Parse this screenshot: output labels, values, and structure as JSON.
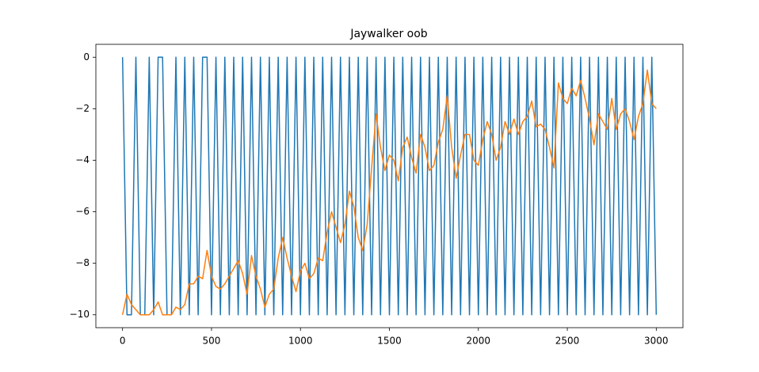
{
  "chart_data": {
    "type": "line",
    "title": "Jaywalker oob",
    "x": [
      0,
      25,
      50,
      75,
      100,
      125,
      150,
      175,
      200,
      225,
      250,
      275,
      300,
      325,
      350,
      375,
      400,
      425,
      450,
      475,
      500,
      525,
      550,
      575,
      600,
      625,
      650,
      675,
      700,
      725,
      750,
      775,
      800,
      825,
      850,
      875,
      900,
      925,
      950,
      975,
      1000,
      1025,
      1050,
      1075,
      1100,
      1125,
      1150,
      1175,
      1200,
      1225,
      1250,
      1275,
      1300,
      1325,
      1350,
      1375,
      1400,
      1425,
      1450,
      1475,
      1500,
      1525,
      1550,
      1575,
      1600,
      1625,
      1650,
      1675,
      1700,
      1725,
      1750,
      1775,
      1800,
      1825,
      1850,
      1875,
      1900,
      1925,
      1950,
      1975,
      2000,
      2025,
      2050,
      2075,
      2100,
      2125,
      2150,
      2175,
      2200,
      2225,
      2250,
      2275,
      2300,
      2325,
      2350,
      2375,
      2400,
      2425,
      2450,
      2475,
      2500,
      2525,
      2550,
      2575,
      2600,
      2625,
      2650,
      2675,
      2700,
      2725,
      2750,
      2775,
      2800,
      2825,
      2850,
      2875,
      2900,
      2925,
      2950,
      2975,
      3000
    ],
    "series": [
      {
        "color": "#1f77b4",
        "values": [
          0,
          -10,
          -10,
          0,
          -10,
          -10,
          0,
          -10,
          0,
          0,
          -10,
          -10,
          0,
          -10,
          0,
          -10,
          0,
          -10,
          0,
          0,
          -10,
          0,
          -10,
          0,
          -10,
          0,
          -10,
          0,
          -10,
          0,
          -10,
          0,
          -10,
          0,
          -10,
          0,
          -10,
          0,
          -10,
          0,
          -10,
          0,
          -10,
          0,
          -10,
          0,
          -10,
          0,
          -10,
          0,
          -10,
          0,
          -10,
          0,
          -10,
          0,
          -10,
          0,
          -10,
          0,
          -10,
          0,
          -10,
          0,
          -10,
          0,
          -10,
          0,
          -10,
          0,
          -10,
          0,
          -10,
          0,
          -10,
          0,
          -10,
          0,
          -10,
          0,
          -10,
          0,
          -10,
          0,
          -10,
          0,
          -10,
          0,
          -10,
          0,
          -10,
          0,
          -10,
          0,
          -10,
          0,
          -10,
          0,
          -10,
          0,
          -10,
          0,
          -10,
          0,
          -10,
          0,
          -10,
          0,
          -10,
          0,
          -10,
          0,
          -10,
          0,
          -10,
          0,
          -10,
          0,
          -10,
          0,
          -10
        ]
      },
      {
        "color": "#ff7f0e",
        "values": [
          -10,
          -9.2,
          -9.6,
          -9.8,
          -10,
          -10,
          -10,
          -9.8,
          -9.5,
          -10,
          -10,
          -10,
          -9.7,
          -9.8,
          -9.6,
          -8.8,
          -8.8,
          -8.5,
          -8.6,
          -7.5,
          -8.5,
          -8.9,
          -9.0,
          -8.8,
          -8.5,
          -8.2,
          -7.9,
          -8.4,
          -9.2,
          -7.7,
          -8.5,
          -9.0,
          -9.7,
          -9.2,
          -9.0,
          -7.8,
          -7.0,
          -7.8,
          -8.5,
          -9.1,
          -8.3,
          -8.0,
          -8.6,
          -8.4,
          -7.8,
          -7.9,
          -6.8,
          -6.0,
          -6.6,
          -7.2,
          -6.5,
          -5.2,
          -5.8,
          -7.0,
          -7.5,
          -6.5,
          -4.3,
          -2.2,
          -3.5,
          -4.4,
          -3.8,
          -4.0,
          -4.8,
          -3.5,
          -3.1,
          -3.9,
          -4.5,
          -3.0,
          -3.5,
          -4.4,
          -4.2,
          -3.3,
          -2.8,
          -1.5,
          -3.5,
          -4.7,
          -3.8,
          -3.0,
          -3.0,
          -4.0,
          -4.2,
          -3.2,
          -2.5,
          -3.0,
          -4.0,
          -3.5,
          -2.5,
          -3.0,
          -2.4,
          -3.0,
          -2.5,
          -2.3,
          -1.7,
          -2.7,
          -2.6,
          -2.8,
          -3.5,
          -4.3,
          -1.0,
          -1.6,
          -1.8,
          -1.2,
          -1.5,
          -0.9,
          -1.6,
          -2.4,
          -3.4,
          -2.2,
          -2.5,
          -2.8,
          -1.6,
          -2.8,
          -2.2,
          -2.0,
          -2.5,
          -3.2,
          -2.3,
          -1.8,
          -0.5,
          -1.8,
          -2.0
        ]
      }
    ],
    "xlim": [
      -150,
      3150
    ],
    "ylim": [
      -10.5,
      0.5
    ],
    "xticks": [
      0,
      500,
      1000,
      1500,
      2000,
      2500,
      3000
    ],
    "yticks": [
      0,
      {
        "value": -2,
        "label": "−2"
      },
      {
        "value": -4,
        "label": "−4"
      },
      {
        "value": -6,
        "label": "−6"
      },
      {
        "value": -8,
        "label": "−8"
      },
      {
        "value": -10,
        "label": "−10"
      }
    ]
  }
}
